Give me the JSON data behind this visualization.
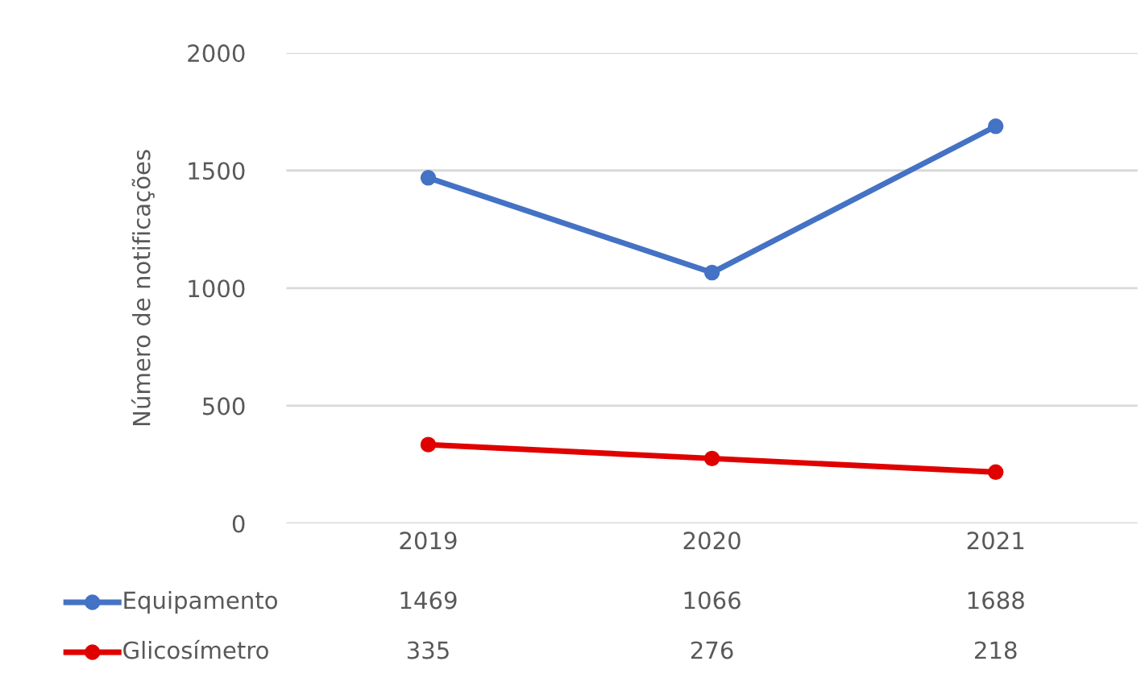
{
  "chart_data": {
    "type": "line",
    "ylabel": "Número de notificações",
    "categories": [
      "2019",
      "2020",
      "2021"
    ],
    "series": [
      {
        "name": "Equipamento",
        "color": "#4472c4",
        "values": [
          1469,
          1066,
          1688
        ]
      },
      {
        "name": "Glicosímetro",
        "color": "#e00000",
        "values": [
          335,
          276,
          218
        ]
      }
    ],
    "ylim": [
      0,
      2000
    ],
    "yticks": [
      0,
      500,
      1000,
      1500,
      2000
    ],
    "grid": "y",
    "legend": "bottom",
    "data_labels": true,
    "marker": "circle",
    "line_style": "solid"
  }
}
